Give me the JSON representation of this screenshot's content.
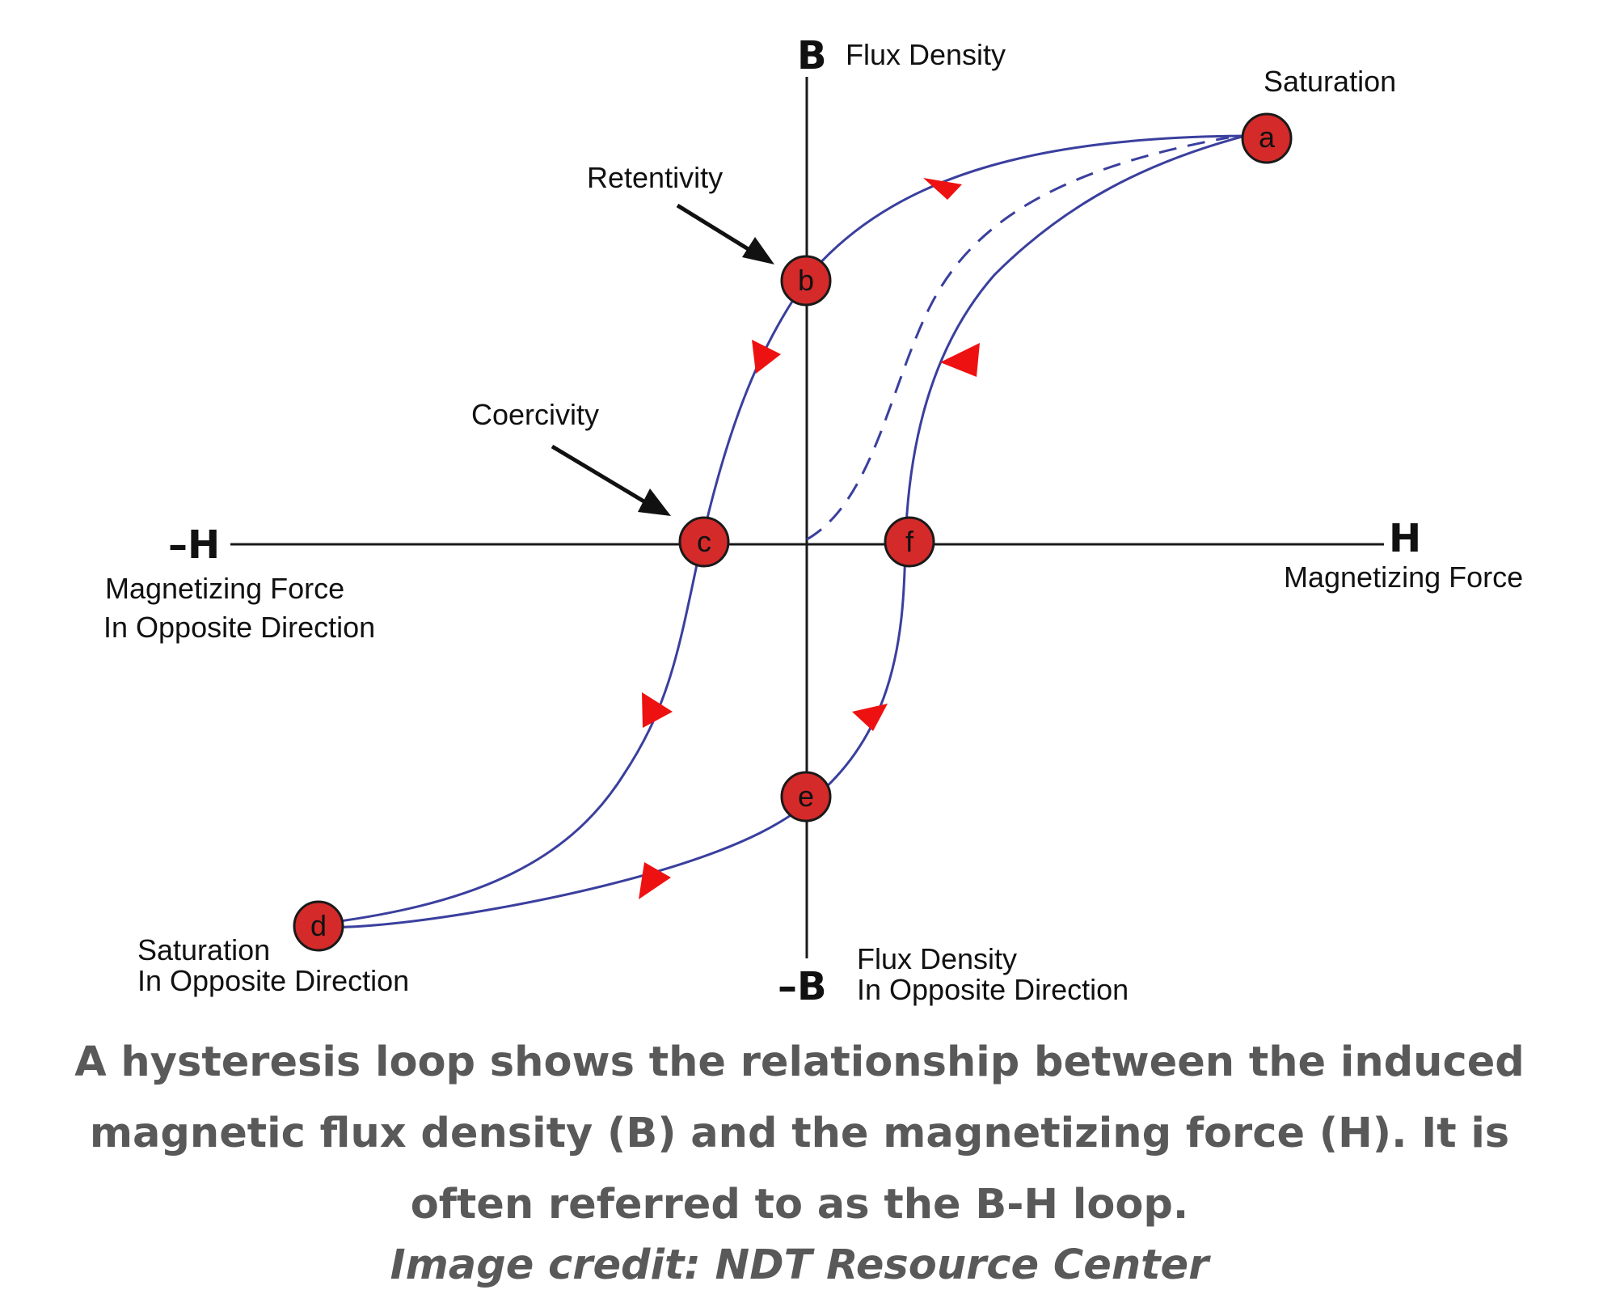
{
  "axes": {
    "y_positive": "B",
    "y_positive_label": "Flux Density",
    "y_negative": "–B",
    "y_negative_label_line1": "Flux Density",
    "y_negative_label_line2": "In Opposite Direction",
    "x_positive": "H",
    "x_positive_label": "Magnetizing Force",
    "x_negative": "–H",
    "x_negative_label_line1": "Magnetizing Force",
    "x_negative_label_line2": "In Opposite Direction"
  },
  "points": {
    "a": "a",
    "b": "b",
    "c": "c",
    "d": "d",
    "e": "e",
    "f": "f"
  },
  "annotations": {
    "saturation": "Saturation",
    "retentivity": "Retentivity",
    "coercivity": "Coercivity",
    "saturation_opposite_line1": "Saturation",
    "saturation_opposite_line2": "In Opposite Direction"
  },
  "caption": "A hysteresis loop shows the relationship between the induced magnetic flux density (B) and the magnetizing force (H). It is often referred to as the B-H loop.",
  "credit": "Image credit: NDT Resource Center",
  "colors": {
    "loop_curve": "#3a3f9e",
    "direction_arrows": "#ee1111",
    "point_markers": "#d42a2a",
    "caption_text": "#595959"
  }
}
